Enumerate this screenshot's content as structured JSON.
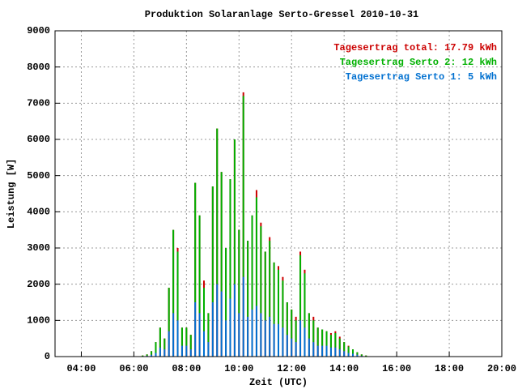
{
  "chart_data": {
    "type": "bar",
    "title": "Produktion Solaranlage Serto-Gressel 2010-10-31",
    "x_label": "Zeit (UTC)",
    "y_label": "Leistung [W]",
    "x": [
      "06:20",
      "06:30",
      "06:40",
      "06:50",
      "07:00",
      "07:10",
      "07:20",
      "07:30",
      "07:40",
      "07:50",
      "08:00",
      "08:10",
      "08:20",
      "08:30",
      "08:40",
      "08:50",
      "09:00",
      "09:10",
      "09:20",
      "09:30",
      "09:40",
      "09:50",
      "10:00",
      "10:10",
      "10:20",
      "10:30",
      "10:40",
      "10:50",
      "11:00",
      "11:10",
      "11:20",
      "11:30",
      "11:40",
      "11:50",
      "12:00",
      "12:10",
      "12:20",
      "12:30",
      "12:40",
      "12:50",
      "13:00",
      "13:10",
      "13:20",
      "13:30",
      "13:40",
      "13:50",
      "14:00",
      "14:10",
      "14:20",
      "14:30",
      "14:40",
      "14:50",
      "15:00"
    ],
    "series": [
      {
        "name": "Tagesertrag total: 17.79 kWh",
        "color": "#cc0000",
        "values": [
          30,
          60,
          150,
          400,
          800,
          500,
          1900,
          3500,
          3000,
          800,
          800,
          600,
          4800,
          3900,
          2100,
          1200,
          4700,
          6300,
          5100,
          3000,
          4900,
          6000,
          3500,
          7300,
          3200,
          3900,
          4600,
          3700,
          2900,
          3300,
          2600,
          2500,
          2200,
          1500,
          1300,
          1100,
          2900,
          2400,
          1200,
          1100,
          800,
          750,
          700,
          650,
          700,
          550,
          400,
          300,
          200,
          120,
          60,
          30,
          10
        ]
      },
      {
        "name": "Tagesertrag Serto 2: 12 kWh",
        "color": "#00b000",
        "values": [
          20,
          40,
          100,
          300,
          550,
          300,
          1200,
          2300,
          1900,
          500,
          500,
          400,
          3300,
          2700,
          1200,
          800,
          3200,
          4300,
          3300,
          2000,
          3300,
          4000,
          2300,
          5000,
          2100,
          2600,
          3000,
          2400,
          1900,
          2100,
          1700,
          1500,
          1300,
          900,
          800,
          600,
          1800,
          1500,
          700,
          600,
          500,
          450,
          400,
          350,
          400,
          300,
          250,
          180,
          120,
          70,
          40,
          20,
          5
        ]
      },
      {
        "name": "Tagesertrag Serto 1: 5 kWh",
        "color": "#0070d0",
        "values": [
          10,
          20,
          50,
          100,
          250,
          200,
          700,
          1200,
          1000,
          300,
          300,
          200,
          1500,
          1200,
          700,
          400,
          1500,
          2000,
          1800,
          1000,
          1600,
          2000,
          1200,
          2200,
          1100,
          1300,
          1400,
          1200,
          1000,
          1100,
          900,
          900,
          800,
          600,
          500,
          400,
          1000,
          800,
          500,
          400,
          300,
          300,
          300,
          250,
          250,
          200,
          150,
          100,
          80,
          50,
          20,
          10,
          5
        ]
      }
    ],
    "xlim": [
      "03:00",
      "20:00"
    ],
    "xticks": [
      "04:00",
      "06:00",
      "08:00",
      "10:00",
      "12:00",
      "14:00",
      "16:00",
      "18:00",
      "20:00"
    ],
    "ylim": [
      0,
      9000
    ],
    "yticks": [
      0,
      1000,
      2000,
      3000,
      4000,
      5000,
      6000,
      7000,
      8000,
      9000
    ],
    "grid": true
  }
}
